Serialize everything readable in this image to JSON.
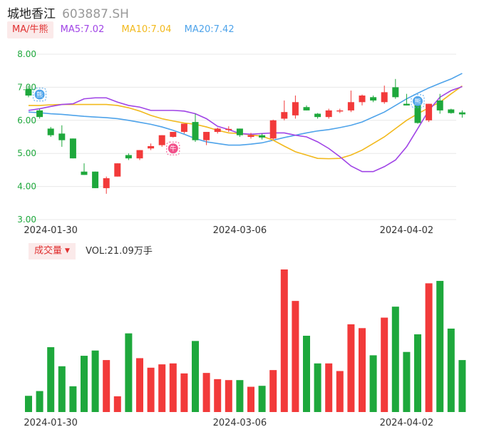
{
  "header": {
    "name": "城地香江",
    "code": "603887.SH"
  },
  "ma": {
    "tag": "MA/牛熊",
    "ma5": "MA5:7.02",
    "ma10": "MA10:7.04",
    "ma20": "MA20:7.42",
    "colors": {
      "ma5": "#a044e6",
      "ma10": "#f2b91c",
      "ma20": "#4ea3ea"
    }
  },
  "volume": {
    "tag": "成交量",
    "caret": "▼",
    "label": "VOL:21.09万手"
  },
  "badges": {
    "bear": "熊",
    "bull": "牛"
  },
  "colors": {
    "up": "#f23a3a",
    "down": "#1ea83c",
    "grid": "#e8e8e8"
  },
  "chart_data": [
    {
      "type": "candlestick",
      "y_ticks": [
        "8.00",
        "7.00",
        "6.00",
        "5.00",
        "4.00",
        "3.00"
      ],
      "ylim": [
        3.0,
        8.0
      ],
      "x_ticks": [
        {
          "index": 2,
          "label": "2024-01-30"
        },
        {
          "index": 19,
          "label": "2024-03-06"
        },
        {
          "index": 34,
          "label": "2024-04-02"
        }
      ],
      "candles": [
        {
          "o": 6.95,
          "h": 7.05,
          "l": 6.7,
          "c": 6.75
        },
        {
          "o": 6.3,
          "h": 6.35,
          "l": 6.05,
          "c": 6.1
        },
        {
          "o": 5.75,
          "h": 5.8,
          "l": 5.5,
          "c": 5.55
        },
        {
          "o": 5.6,
          "h": 5.85,
          "l": 5.2,
          "c": 5.4
        },
        {
          "o": 5.45,
          "h": 5.45,
          "l": 4.85,
          "c": 4.85
        },
        {
          "o": 4.45,
          "h": 4.7,
          "l": 4.35,
          "c": 4.35
        },
        {
          "o": 4.45,
          "h": 4.45,
          "l": 3.95,
          "c": 3.95
        },
        {
          "o": 3.95,
          "h": 4.3,
          "l": 3.78,
          "c": 4.25
        },
        {
          "o": 4.3,
          "h": 4.7,
          "l": 4.3,
          "c": 4.7
        },
        {
          "o": 4.95,
          "h": 5.0,
          "l": 4.8,
          "c": 4.85
        },
        {
          "o": 4.85,
          "h": 5.1,
          "l": 4.8,
          "c": 5.1
        },
        {
          "o": 5.15,
          "h": 5.3,
          "l": 5.1,
          "c": 5.22
        },
        {
          "o": 5.25,
          "h": 5.55,
          "l": 5.2,
          "c": 5.55
        },
        {
          "o": 5.5,
          "h": 5.65,
          "l": 5.48,
          "c": 5.65
        },
        {
          "o": 5.65,
          "h": 5.9,
          "l": 5.6,
          "c": 5.9
        },
        {
          "o": 5.95,
          "h": 6.2,
          "l": 5.35,
          "c": 5.4
        },
        {
          "o": 5.4,
          "h": 5.65,
          "l": 5.25,
          "c": 5.65
        },
        {
          "o": 5.65,
          "h": 5.78,
          "l": 5.6,
          "c": 5.75
        },
        {
          "o": 5.72,
          "h": 5.82,
          "l": 5.65,
          "c": 5.74
        },
        {
          "o": 5.75,
          "h": 5.75,
          "l": 5.5,
          "c": 5.55
        },
        {
          "o": 5.5,
          "h": 5.62,
          "l": 5.45,
          "c": 5.55
        },
        {
          "o": 5.55,
          "h": 5.6,
          "l": 5.42,
          "c": 5.48
        },
        {
          "o": 5.45,
          "h": 6.02,
          "l": 5.42,
          "c": 6.0
        },
        {
          "o": 6.05,
          "h": 6.6,
          "l": 6.0,
          "c": 6.25
        },
        {
          "o": 6.15,
          "h": 6.75,
          "l": 6.05,
          "c": 6.55
        },
        {
          "o": 6.4,
          "h": 6.45,
          "l": 6.3,
          "c": 6.3
        },
        {
          "o": 6.2,
          "h": 6.22,
          "l": 6.05,
          "c": 6.1
        },
        {
          "o": 6.1,
          "h": 6.35,
          "l": 6.05,
          "c": 6.3
        },
        {
          "o": 6.28,
          "h": 6.35,
          "l": 6.22,
          "c": 6.3
        },
        {
          "o": 6.3,
          "h": 6.9,
          "l": 6.25,
          "c": 6.55
        },
        {
          "o": 6.55,
          "h": 6.78,
          "l": 6.45,
          "c": 6.75
        },
        {
          "o": 6.7,
          "h": 6.75,
          "l": 6.55,
          "c": 6.6
        },
        {
          "o": 6.55,
          "h": 7.05,
          "l": 6.5,
          "c": 6.85
        },
        {
          "o": 7.0,
          "h": 7.25,
          "l": 6.65,
          "c": 6.7
        },
        {
          "o": 6.5,
          "h": 6.8,
          "l": 6.45,
          "c": 6.45
        },
        {
          "o": 6.5,
          "h": 6.55,
          "l": 5.9,
          "c": 5.92
        },
        {
          "o": 6.0,
          "h": 6.5,
          "l": 5.95,
          "c": 6.5
        },
        {
          "o": 6.6,
          "h": 6.8,
          "l": 6.2,
          "c": 6.3
        },
        {
          "o": 6.33,
          "h": 6.35,
          "l": 6.2,
          "c": 6.22
        },
        {
          "o": 6.24,
          "h": 6.3,
          "l": 6.08,
          "c": 6.18
        }
      ],
      "ma5": [
        6.3,
        6.35,
        6.42,
        6.48,
        6.5,
        6.65,
        6.68,
        6.68,
        6.55,
        6.45,
        6.4,
        6.3,
        6.3,
        6.3,
        6.28,
        6.2,
        6.05,
        5.82,
        5.72,
        5.6,
        5.58,
        5.6,
        5.62,
        5.62,
        5.55,
        5.5,
        5.35,
        5.15,
        4.9,
        4.62,
        4.45,
        4.45,
        4.6,
        4.8,
        5.2,
        5.75,
        6.3,
        6.7,
        6.9,
        7.02
      ],
      "ma10": [
        6.45,
        6.45,
        6.47,
        6.48,
        6.48,
        6.48,
        6.48,
        6.48,
        6.45,
        6.38,
        6.28,
        6.15,
        6.05,
        5.98,
        5.92,
        5.88,
        5.8,
        5.7,
        5.62,
        5.6,
        5.56,
        5.52,
        5.4,
        5.22,
        5.05,
        4.95,
        4.85,
        4.84,
        4.85,
        4.95,
        5.1,
        5.3,
        5.5,
        5.75,
        6.0,
        6.2,
        6.38,
        6.55,
        6.8,
        7.04
      ],
      "ma20": [
        6.25,
        6.23,
        6.2,
        6.18,
        6.15,
        6.12,
        6.1,
        6.08,
        6.05,
        6.0,
        5.94,
        5.88,
        5.8,
        5.7,
        5.58,
        5.45,
        5.35,
        5.3,
        5.25,
        5.25,
        5.28,
        5.32,
        5.4,
        5.48,
        5.55,
        5.62,
        5.68,
        5.72,
        5.78,
        5.85,
        5.95,
        6.1,
        6.25,
        6.45,
        6.65,
        6.82,
        6.98,
        7.12,
        7.25,
        7.42
      ]
    },
    {
      "type": "bar",
      "title": "VOL:21.09万手",
      "x_ticks": [
        {
          "index": 2,
          "label": "2024-01-30"
        },
        {
          "index": 19,
          "label": "2024-03-06"
        },
        {
          "index": 34,
          "label": "2024-04-02"
        }
      ],
      "values": [
        3.4,
        4.4,
        13.6,
        9.6,
        5.4,
        11.8,
        12.9,
        10.9,
        3.3,
        16.5,
        11.3,
        9.3,
        10.0,
        10.2,
        8.1,
        14.9,
        8.2,
        6.9,
        6.7,
        6.7,
        5.3,
        5.5,
        8.8,
        29.9,
        23.3,
        16.0,
        10.2,
        10.2,
        8.6,
        18.4,
        17.6,
        11.9,
        19.8,
        22.1,
        12.6,
        16.3,
        27.0,
        27.5,
        17.5,
        10.9
      ],
      "directions": [
        "down",
        "down",
        "down",
        "down",
        "down",
        "down",
        "down",
        "up",
        "up",
        "down",
        "up",
        "up",
        "up",
        "up",
        "up",
        "down",
        "up",
        "up",
        "up",
        "down",
        "up",
        "down",
        "up",
        "up",
        "up",
        "down",
        "down",
        "up",
        "up",
        "up",
        "up",
        "down",
        "up",
        "down",
        "down",
        "down",
        "up",
        "down",
        "down",
        "down"
      ]
    }
  ]
}
